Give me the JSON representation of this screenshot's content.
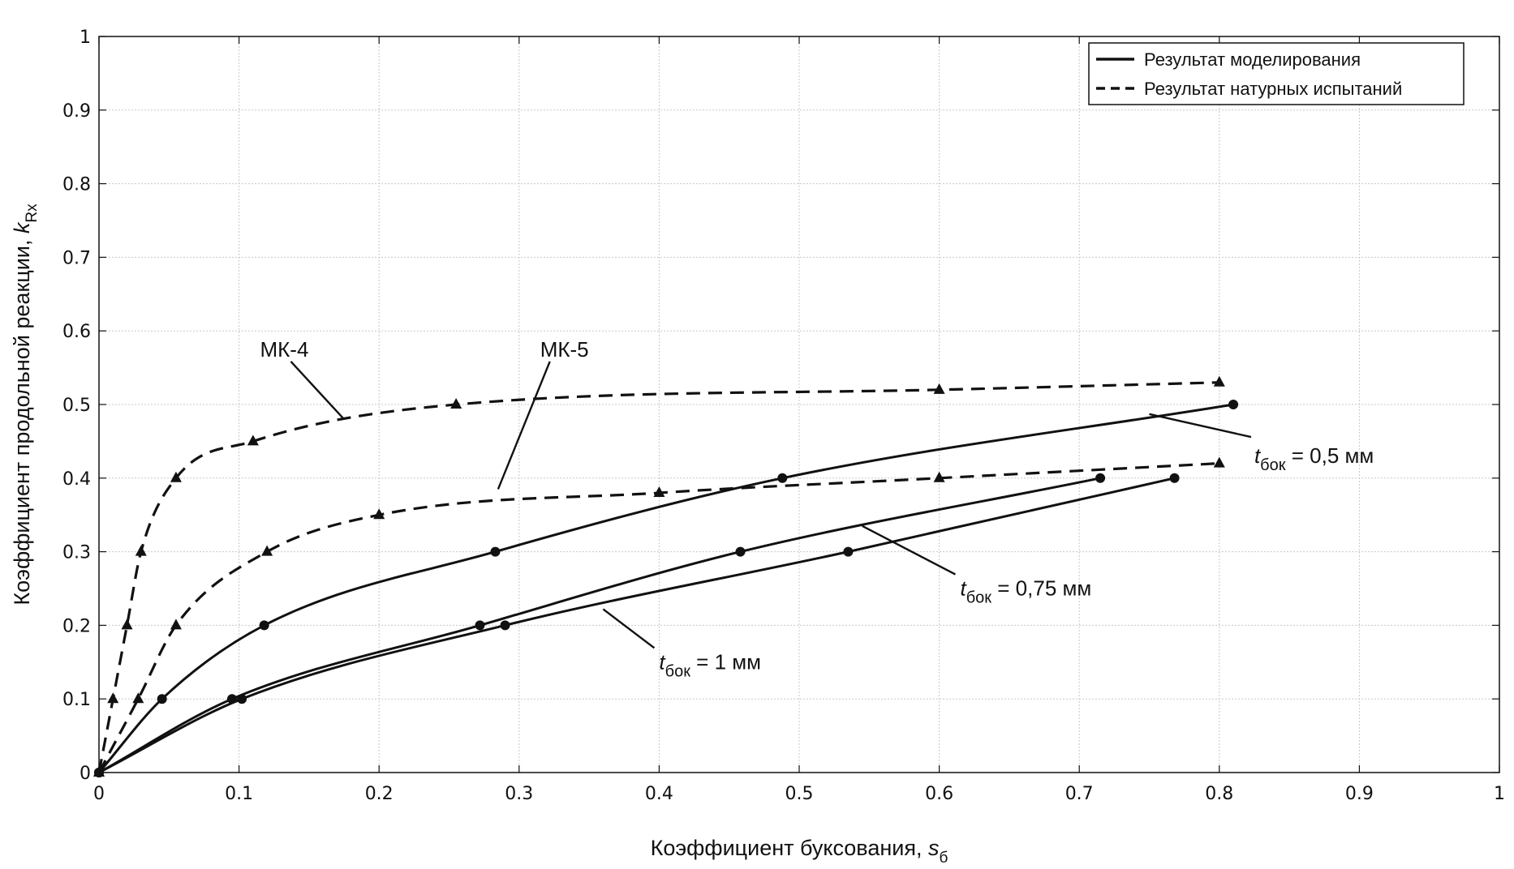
{
  "chart_data": {
    "type": "line",
    "xlabel": "Коэффициент буксования, ",
    "xlabel_var": "s",
    "xlabel_sub": "б",
    "ylabel": "Коэффициент продольной реакции, ",
    "ylabel_var": "k",
    "ylabel_sub": "Rx",
    "xlim": [
      0,
      1
    ],
    "ylim": [
      0,
      1
    ],
    "x_ticks": [
      "0",
      "0.1",
      "0.2",
      "0.3",
      "0.4",
      "0.5",
      "0.6",
      "0.7",
      "0.8",
      "0.9",
      "1"
    ],
    "y_ticks": [
      "0",
      "0.1",
      "0.2",
      "0.3",
      "0.4",
      "0.5",
      "0.6",
      "0.7",
      "0.8",
      "0.9",
      "1"
    ],
    "grid": true,
    "legend": {
      "placement": "top-right",
      "entries": [
        {
          "label": "Результат моделирования",
          "style": "solid"
        },
        {
          "label": "Результат натурных испытаний",
          "style": "dashed"
        }
      ]
    },
    "series": [
      {
        "id": "mk4",
        "group": "МК-4",
        "style": "dashed",
        "marker": "triangle",
        "points": [
          [
            0,
            0
          ],
          [
            0.01,
            0.1
          ],
          [
            0.02,
            0.2
          ],
          [
            0.03,
            0.3
          ],
          [
            0.055,
            0.4
          ],
          [
            0.11,
            0.45
          ],
          [
            0.255,
            0.5
          ],
          [
            0.6,
            0.52
          ],
          [
            0.8,
            0.53
          ]
        ]
      },
      {
        "id": "mk5",
        "group": "МК-5",
        "style": "dashed",
        "marker": "triangle",
        "points": [
          [
            0,
            0
          ],
          [
            0.028,
            0.1
          ],
          [
            0.055,
            0.2
          ],
          [
            0.12,
            0.3
          ],
          [
            0.2,
            0.35
          ],
          [
            0.4,
            0.38
          ],
          [
            0.6,
            0.4
          ],
          [
            0.8,
            0.42
          ]
        ]
      },
      {
        "id": "t05",
        "group": "tбок = 0,5 мм",
        "style": "solid",
        "marker": "circle",
        "points": [
          [
            0,
            0
          ],
          [
            0.045,
            0.1
          ],
          [
            0.118,
            0.2
          ],
          [
            0.283,
            0.3
          ],
          [
            0.488,
            0.4
          ],
          [
            0.81,
            0.5
          ]
        ]
      },
      {
        "id": "t075",
        "group": "tбок = 0,75 мм",
        "style": "solid",
        "marker": "circle",
        "points": [
          [
            0,
            0
          ],
          [
            0.095,
            0.1
          ],
          [
            0.272,
            0.2
          ],
          [
            0.458,
            0.3
          ],
          [
            0.715,
            0.4
          ]
        ]
      },
      {
        "id": "t1",
        "group": "tбок = 1 мм",
        "style": "solid",
        "marker": "circle",
        "points": [
          [
            0,
            0
          ],
          [
            0.102,
            0.1
          ],
          [
            0.29,
            0.2
          ],
          [
            0.535,
            0.3
          ],
          [
            0.768,
            0.4
          ]
        ]
      }
    ],
    "annotations": [
      {
        "id": "mk4",
        "text": "МК-4",
        "x": 0.115,
        "y": 0.565,
        "arrow_to": [
          0.175,
          0.48
        ]
      },
      {
        "id": "mk5",
        "text": "МК-5",
        "x": 0.315,
        "y": 0.565,
        "arrow_to": [
          0.285,
          0.385
        ]
      },
      {
        "id": "t05",
        "text": "t",
        "sub": "бок",
        "rest": " = 0,5 мм",
        "x": 0.825,
        "y": 0.425,
        "arrow_to": [
          0.75,
          0.487
        ]
      },
      {
        "id": "t075",
        "text": "t",
        "sub": "бок",
        "rest": " = 0,75 мм",
        "x": 0.615,
        "y": 0.245,
        "arrow_to": [
          0.545,
          0.335
        ]
      },
      {
        "id": "t1",
        "text": "t",
        "sub": "бок",
        "rest": " = 1 мм",
        "x": 0.4,
        "y": 0.145,
        "arrow_to": [
          0.36,
          0.222
        ]
      }
    ]
  }
}
